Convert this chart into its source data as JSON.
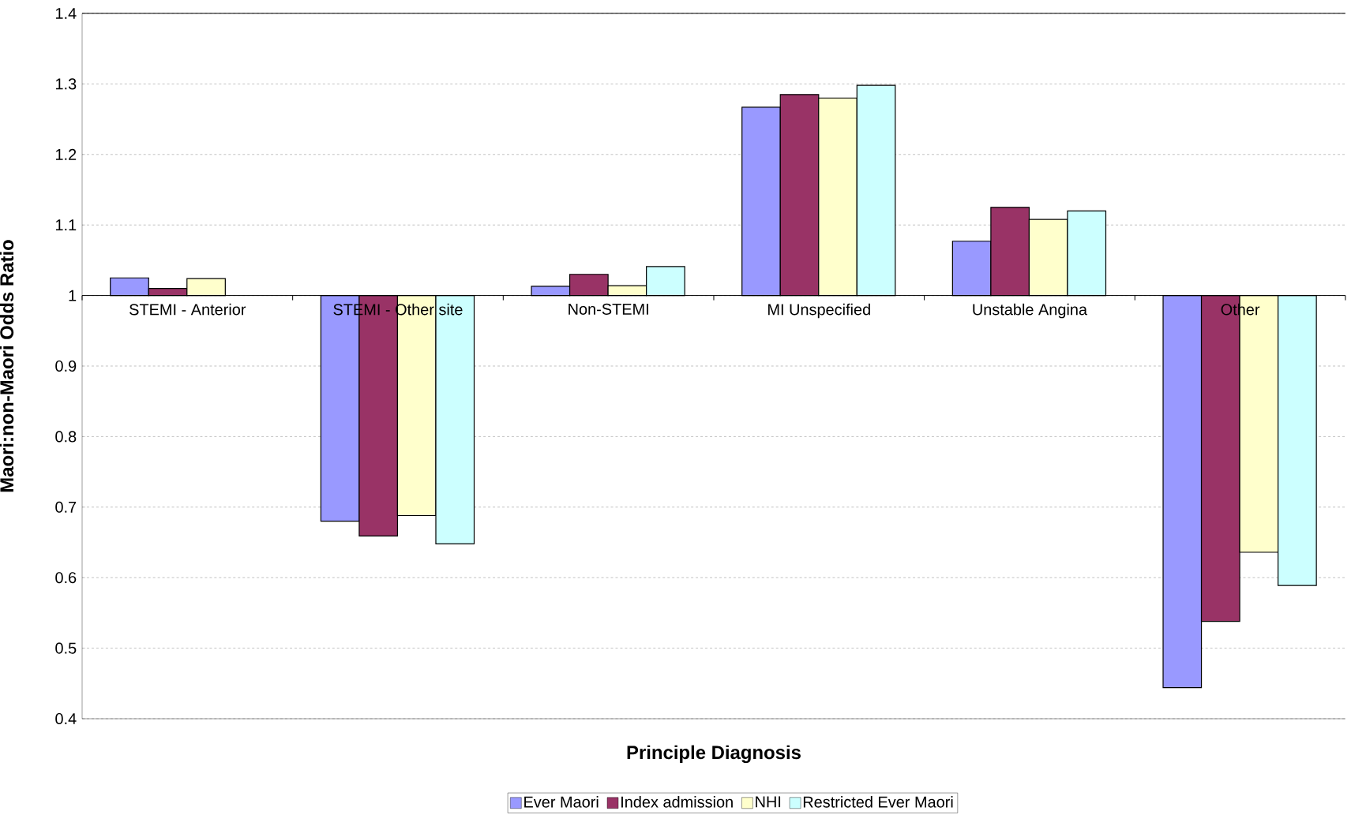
{
  "chart_data": {
    "type": "bar",
    "xlabel": "Principle Diagnosis",
    "ylabel": "Maori:non-Maori Odds Ratio",
    "categories": [
      "STEMI - Anterior",
      "STEMI - Other site",
      "Non-STEMI",
      "MI Unspecified",
      "Unstable Angina",
      "Other"
    ],
    "series": [
      {
        "name": "Ever Maori",
        "color": "#9999ff",
        "base": [
          1,
          1,
          1,
          1,
          1,
          1
        ],
        "values": [
          0.025,
          -0.32,
          0.013,
          0.267,
          0.077,
          -0.556
        ]
      },
      {
        "name": "Index admission",
        "color": "#993366",
        "base": [
          1,
          1,
          1,
          1,
          1,
          1
        ],
        "values": [
          0.01,
          -0.341,
          0.03,
          0.285,
          0.125,
          -0.462
        ]
      },
      {
        "name": "NHI",
        "color": "#ffffcc",
        "base": [
          1,
          1,
          1,
          1,
          1,
          1
        ],
        "values": [
          0.024,
          -0.312,
          0.014,
          0.28,
          0.108,
          -0.364
        ]
      },
      {
        "name": "Restricted Ever Maori",
        "color": "#ccffff",
        "base": [
          null,
          1,
          1,
          1,
          1,
          1
        ],
        "values": [
          null,
          -0.352,
          0.041,
          0.298,
          0.12,
          -0.411
        ]
      }
    ],
    "ylim": [
      0.4,
      1.4
    ],
    "yticks": [
      0.4,
      0.5,
      0.6,
      0.7,
      0.8,
      0.9,
      1,
      1.1,
      1.2,
      1.3,
      1.4
    ],
    "grid": "y",
    "legend": "bottom"
  }
}
